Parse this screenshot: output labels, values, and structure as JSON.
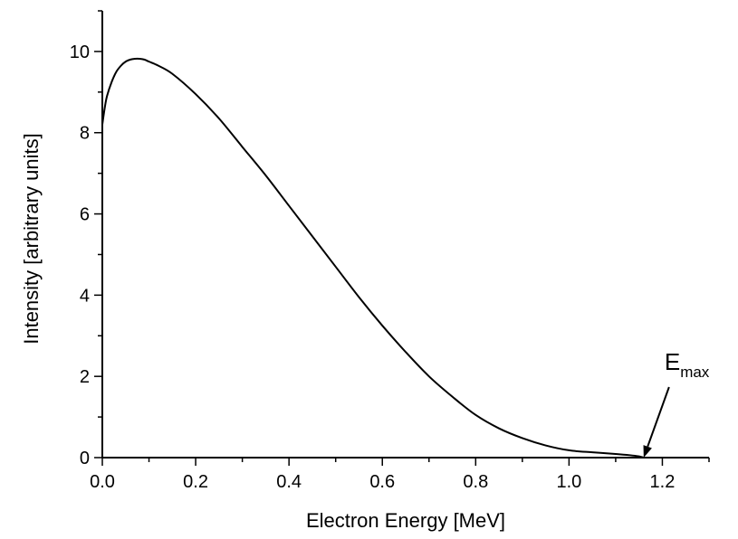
{
  "chart_data": {
    "type": "line",
    "title": "",
    "xlabel": "Electron Energy [MeV]",
    "ylabel": "Intensity [arbitrary units]",
    "xlim": [
      0.0,
      1.3
    ],
    "ylim": [
      0,
      11
    ],
    "x_ticks": [
      "0.0",
      "0.2",
      "0.4",
      "0.6",
      "0.8",
      "1.0",
      "1.2"
    ],
    "y_ticks": [
      "0",
      "2",
      "4",
      "6",
      "8",
      "10"
    ],
    "grid": false,
    "series": [
      {
        "color": "#000000",
        "x": [
          0.0,
          0.005,
          0.01,
          0.02,
          0.03,
          0.04,
          0.05,
          0.06,
          0.07,
          0.08,
          0.09,
          0.1,
          0.12,
          0.15,
          0.2,
          0.25,
          0.3,
          0.35,
          0.4,
          0.45,
          0.5,
          0.55,
          0.6,
          0.65,
          0.7,
          0.75,
          0.8,
          0.85,
          0.9,
          0.95,
          1.0,
          1.05,
          1.1,
          1.13,
          1.15,
          1.16
        ],
        "y": [
          8.2,
          8.6,
          8.9,
          9.25,
          9.5,
          9.65,
          9.75,
          9.8,
          9.82,
          9.82,
          9.8,
          9.75,
          9.65,
          9.45,
          8.95,
          8.35,
          7.65,
          6.95,
          6.2,
          5.45,
          4.7,
          3.95,
          3.25,
          2.6,
          2.0,
          1.5,
          1.05,
          0.72,
          0.48,
          0.3,
          0.18,
          0.13,
          0.09,
          0.06,
          0.03,
          0.0
        ]
      }
    ],
    "annotations": [
      {
        "text": "E",
        "subscript": "max",
        "x": 1.16,
        "y": 0.0
      }
    ]
  }
}
